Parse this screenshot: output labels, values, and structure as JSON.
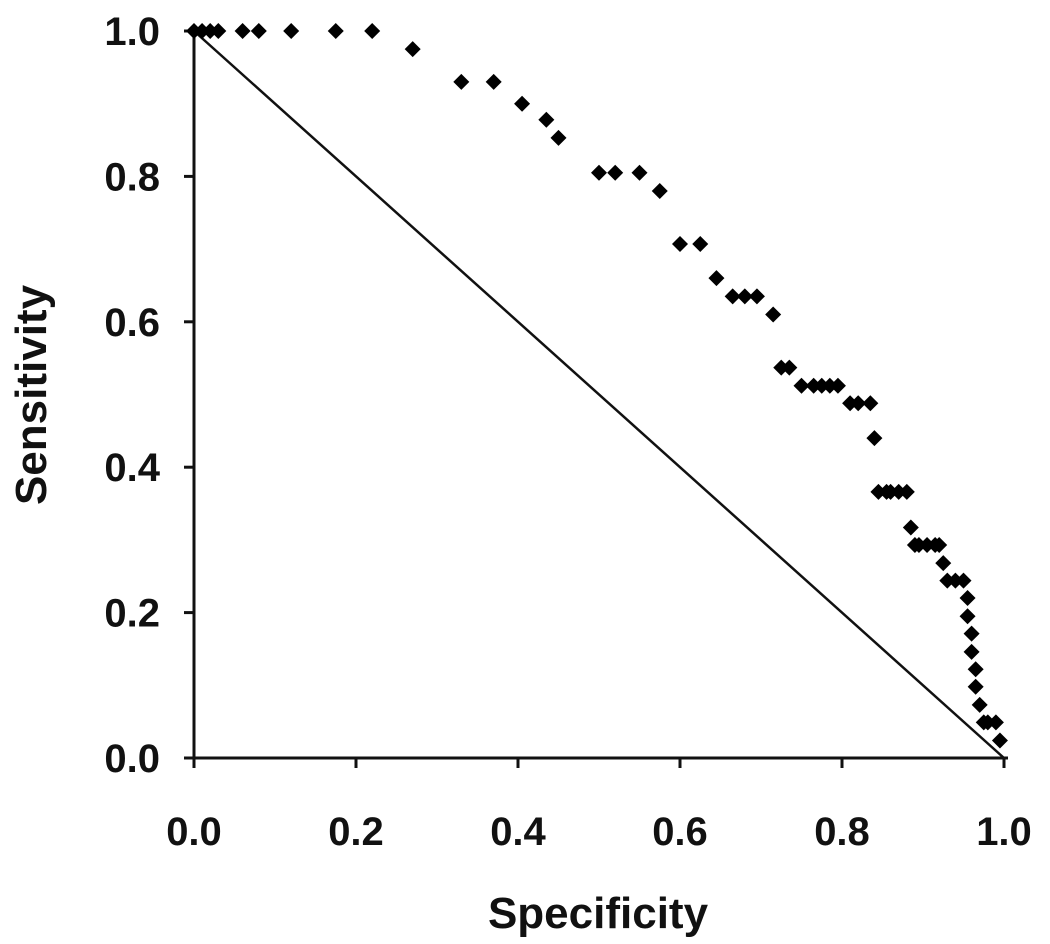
{
  "chart_data": {
    "type": "scatter",
    "title": "",
    "xlabel": "Specificity",
    "ylabel": "Sensitivity",
    "xlim": [
      0,
      1
    ],
    "ylim": [
      0,
      1
    ],
    "x_ticks": [
      "0.0",
      "0.2",
      "0.4",
      "0.6",
      "0.8",
      "1.0"
    ],
    "y_ticks": [
      "0.0",
      "0.2",
      "0.4",
      "0.6",
      "0.8",
      "1.0"
    ],
    "grid": false,
    "legend": "none",
    "marker": "diamond",
    "marker_color": "#000000",
    "reference_line": {
      "from": [
        0,
        1
      ],
      "to": [
        1,
        0
      ]
    },
    "series": [
      {
        "x": [
          0.0,
          0.01,
          0.02,
          0.03,
          0.06,
          0.08,
          0.12,
          0.175,
          0.22,
          0.27,
          0.33,
          0.37,
          0.405,
          0.435,
          0.45,
          0.5,
          0.52,
          0.55,
          0.575,
          0.6,
          0.625,
          0.645,
          0.665,
          0.68,
          0.695,
          0.715,
          0.725,
          0.735,
          0.75,
          0.765,
          0.775,
          0.785,
          0.795,
          0.81,
          0.82,
          0.835,
          0.84,
          0.845,
          0.855,
          0.86,
          0.87,
          0.88,
          0.885,
          0.89,
          0.895,
          0.905,
          0.915,
          0.92,
          0.925,
          0.93,
          0.94,
          0.95,
          0.955,
          0.955,
          0.96,
          0.96,
          0.965,
          0.965,
          0.97,
          0.975,
          0.98,
          0.99,
          0.995
        ],
        "y": [
          1.0,
          1.0,
          1.0,
          1.0,
          1.0,
          1.0,
          1.0,
          1.0,
          1.0,
          0.975,
          0.93,
          0.93,
          0.9,
          0.878,
          0.853,
          0.805,
          0.805,
          0.805,
          0.78,
          0.707,
          0.707,
          0.66,
          0.635,
          0.635,
          0.635,
          0.61,
          0.537,
          0.537,
          0.512,
          0.512,
          0.512,
          0.512,
          0.512,
          0.488,
          0.488,
          0.488,
          0.44,
          0.366,
          0.366,
          0.366,
          0.366,
          0.366,
          0.317,
          0.293,
          0.293,
          0.293,
          0.293,
          0.293,
          0.268,
          0.244,
          0.244,
          0.244,
          0.22,
          0.195,
          0.171,
          0.146,
          0.122,
          0.098,
          0.073,
          0.049,
          0.049,
          0.049,
          0.024
        ]
      }
    ]
  }
}
